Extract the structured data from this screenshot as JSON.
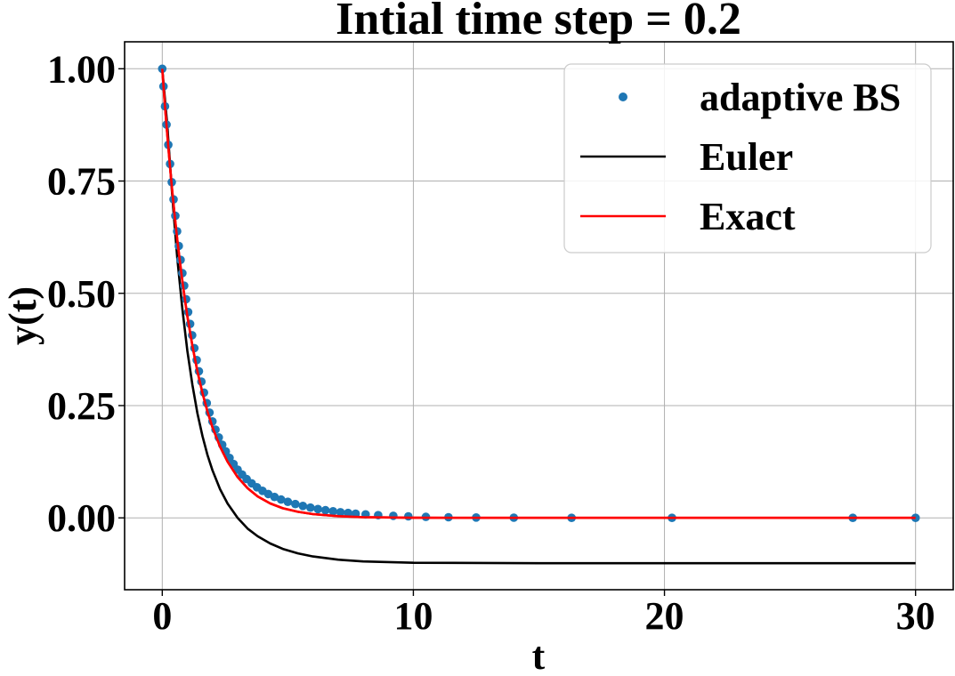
{
  "chart_data": {
    "type": "line",
    "title": "Intial time step = 0.2",
    "xlabel": "t",
    "ylabel": "y(t)",
    "xlim": [
      -1.5,
      31.5
    ],
    "ylim": [
      -0.16,
      1.06
    ],
    "xticks": [
      0,
      10,
      20,
      30
    ],
    "xtick_labels": [
      "0",
      "10",
      "20",
      "30"
    ],
    "yticks": [
      0.0,
      0.25,
      0.5,
      0.75,
      1.0
    ],
    "ytick_labels": [
      "0.00",
      "0.25",
      "0.50",
      "0.75",
      "1.00"
    ],
    "grid": true,
    "legend_position": "top-right",
    "series": [
      {
        "name": "adaptive BS",
        "style": "markers",
        "color": "#1f77b4",
        "x": [
          0,
          0.05,
          0.11,
          0.17,
          0.24,
          0.31,
          0.38,
          0.45,
          0.52,
          0.59,
          0.66,
          0.73,
          0.8,
          0.87,
          0.95,
          1.03,
          1.11,
          1.19,
          1.28,
          1.37,
          1.46,
          1.56,
          1.66,
          1.77,
          1.88,
          2.0,
          2.12,
          2.25,
          2.39,
          2.53,
          2.68,
          2.84,
          3.0,
          3.18,
          3.36,
          3.56,
          3.77,
          3.99,
          4.22,
          4.47,
          4.73,
          5.0,
          5.3,
          5.6,
          5.9,
          6.2,
          6.5,
          6.8,
          7.1,
          7.4,
          7.7,
          8.1,
          8.6,
          9.2,
          9.8,
          10.5,
          11.4,
          12.5,
          14.0,
          16.3,
          20.3,
          27.5,
          30.0
        ],
        "y": [
          1.0,
          0.9608,
          0.9165,
          0.8756,
          0.8307,
          0.788,
          0.7475,
          0.7091,
          0.6727,
          0.6382,
          0.6054,
          0.5743,
          0.5448,
          0.5169,
          0.4868,
          0.4584,
          0.4317,
          0.4066,
          0.378,
          0.3513,
          0.3265,
          0.3035,
          0.2788,
          0.2556,
          0.2343,
          0.2147,
          0.1964,
          0.1791,
          0.1628,
          0.148,
          0.1335,
          0.1198,
          0.1074,
          0.0964,
          0.0863,
          0.0768,
          0.0681,
          0.0602,
          0.0531,
          0.0466,
          0.0408,
          0.0357,
          0.0307,
          0.0265,
          0.0228,
          0.0197,
          0.017,
          0.0146,
          0.0126,
          0.0109,
          0.0094,
          0.0077,
          0.006,
          0.0045,
          0.0033,
          0.0023,
          0.0015,
          0.0009,
          0.0004,
          0.0001,
          0.0,
          0.0,
          0.0
        ]
      },
      {
        "name": "Euler",
        "style": "line",
        "color": "#000000",
        "x": [
          0,
          0.2,
          0.4,
          0.6,
          0.8,
          1.0,
          1.2,
          1.4,
          1.6,
          1.8,
          2.0,
          2.3,
          2.6,
          3.0,
          3.4,
          3.8,
          4.3,
          4.8,
          5.4,
          6.0,
          7.0,
          8.0,
          10.0,
          15.0,
          20.0,
          25.0,
          30.0
        ],
        "y": [
          1.0,
          0.873,
          0.716,
          0.578,
          0.465,
          0.372,
          0.296,
          0.233,
          0.182,
          0.14,
          0.106,
          0.064,
          0.032,
          0.0,
          -0.024,
          -0.041,
          -0.057,
          -0.069,
          -0.079,
          -0.086,
          -0.093,
          -0.097,
          -0.1,
          -0.101,
          -0.101,
          -0.101,
          -0.101
        ]
      },
      {
        "name": "Exact",
        "style": "line",
        "color": "#ff0000",
        "x": [
          0,
          0.1,
          0.2,
          0.3,
          0.4,
          0.5,
          0.6,
          0.7,
          0.8,
          0.9,
          1.0,
          1.2,
          1.4,
          1.6,
          1.8,
          2.0,
          2.3,
          2.6,
          3.0,
          3.4,
          3.8,
          4.3,
          4.8,
          5.4,
          6.0,
          7.0,
          8.0,
          10.0,
          15.0,
          20.0,
          25.0,
          30.0
        ],
        "y": [
          1.0,
          0.9231,
          0.8521,
          0.7866,
          0.7261,
          0.6703,
          0.6188,
          0.5712,
          0.5273,
          0.4868,
          0.4493,
          0.3829,
          0.3263,
          0.278,
          0.2369,
          0.2019,
          0.1588,
          0.1249,
          0.0907,
          0.0659,
          0.0478,
          0.0321,
          0.0215,
          0.0134,
          0.0083,
          0.0038,
          0.0017,
          0.0003,
          0.0,
          0.0,
          0.0,
          0.0
        ]
      }
    ]
  }
}
